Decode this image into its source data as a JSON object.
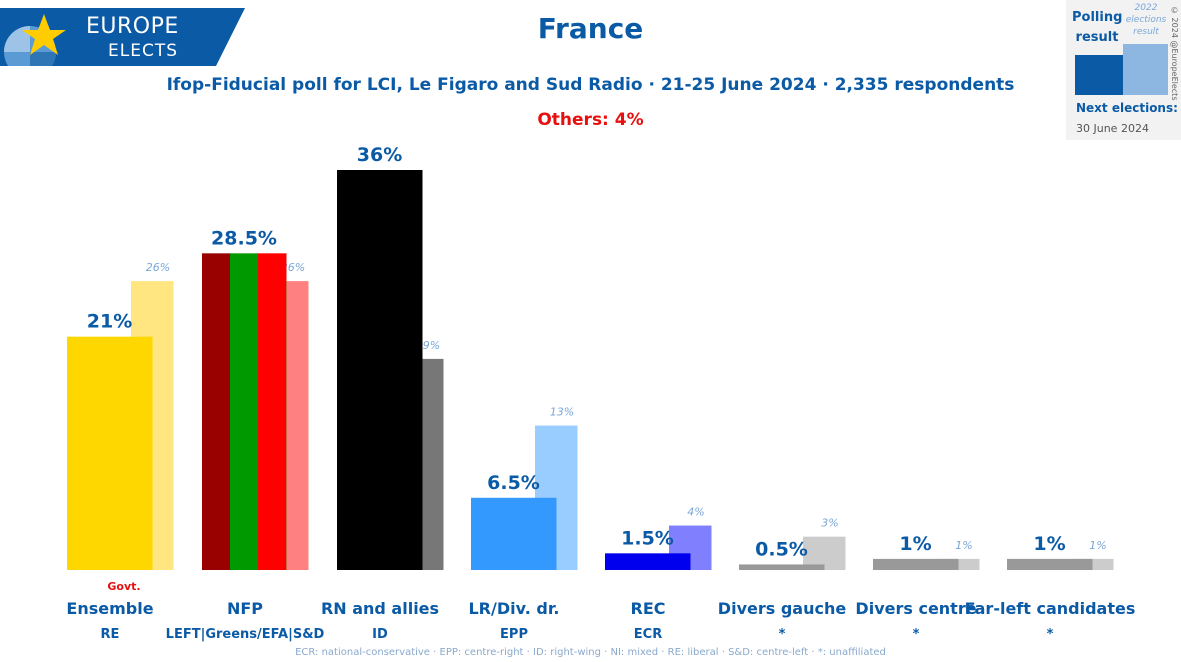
{
  "brand": {
    "line1": "EUROPE",
    "line2": "ELECTS"
  },
  "title": "France",
  "subtitle": "Ifop-Fiducial poll for LCI, Le Figaro and Sud Radio · 21-25 June 2024 · 2,335 respondents",
  "others_note": "Others: 4%",
  "legend": {
    "poll_label": "Polling result",
    "prev_label": "2022 elections result",
    "next_elections_label": "Next elections:",
    "next_elections_date": "30 June 2024",
    "copyright": "© 2024 @EuropeElects"
  },
  "footnote": "ECR: national-conservative · EPP: centre-right · ID: right-wing · NI: mixed · RE: liberal · S&D: centre-left · *: unaffiliated",
  "colors": {
    "accent": "#0b5aa6",
    "others": "#e8100f",
    "previous_label": "#7aa7d9"
  },
  "chart_data": {
    "type": "bar",
    "ylim": [
      0,
      36
    ],
    "grid": false,
    "categories": [
      "Ensemble",
      "NFP",
      "RN and allies",
      "LR/Div. dr.",
      "REC",
      "Divers gauche",
      "Divers centre",
      "Far-left candidates"
    ],
    "groups": [
      "RE",
      "LEFT|Greens/EFA|S&D",
      "ID",
      "EPP",
      "ECR",
      "*",
      "*",
      "*"
    ],
    "badges": [
      "Govt.",
      "",
      "",
      "",
      "",
      "",
      "",
      ""
    ],
    "series": [
      {
        "name": "Polling result",
        "values": [
          21,
          28.5,
          36,
          6.5,
          1.5,
          0.5,
          1,
          1
        ],
        "labels": [
          "21%",
          "28.5%",
          "36%",
          "6.5%",
          "1.5%",
          "0.5%",
          "1%",
          "1%"
        ],
        "colors": [
          [
            "#ffd700"
          ],
          [
            "#990000",
            "#009900",
            "#ff0000"
          ],
          [
            "#000000"
          ],
          [
            "#3399ff"
          ],
          [
            "#0000ee"
          ],
          [
            "#999999"
          ],
          [
            "#999999"
          ],
          [
            "#999999"
          ]
        ]
      },
      {
        "name": "2022 elections result",
        "values": [
          26,
          26,
          19,
          13,
          4,
          3,
          1,
          1
        ],
        "labels": [
          "26%",
          "26%",
          "19%",
          "13%",
          "4%",
          "3%",
          "1%",
          "1%"
        ],
        "colors": [
          [
            "#ffe680"
          ],
          [
            "#8fd18f",
            "#ff8080"
          ],
          [
            "#777777"
          ],
          [
            "#99ccff"
          ],
          [
            "#8080ff"
          ],
          [
            "#cccccc"
          ],
          [
            "#cccccc"
          ],
          [
            "#cccccc"
          ]
        ]
      }
    ]
  }
}
